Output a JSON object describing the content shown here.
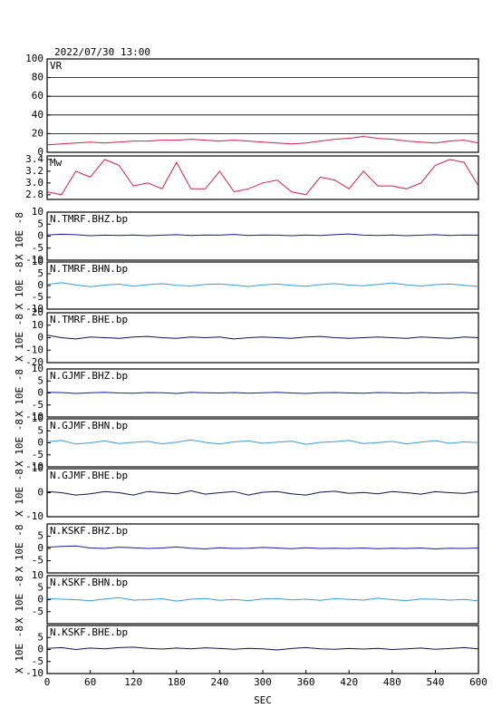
{
  "chart_data": [
    {
      "type": "line",
      "title": "2022/07/30 13:00",
      "grid": true,
      "xlim": [
        0,
        600
      ],
      "ylim": [
        0,
        100
      ],
      "yticks": [
        0,
        20,
        40,
        60,
        80,
        100
      ],
      "x": [
        0,
        20,
        40,
        60,
        80,
        100,
        120,
        140,
        160,
        180,
        200,
        220,
        240,
        260,
        280,
        300,
        320,
        340,
        360,
        380,
        400,
        420,
        440,
        460,
        480,
        500,
        520,
        540,
        560,
        580,
        600
      ],
      "series": [
        {
          "name": "VR",
          "color": "#d0204a",
          "values": [
            8,
            9,
            10,
            11,
            10,
            11,
            12,
            12,
            13,
            13,
            14,
            13,
            12,
            13,
            12,
            11,
            10,
            9,
            10,
            12,
            14,
            15,
            17,
            15,
            14,
            12,
            11,
            10,
            12,
            13,
            10
          ]
        }
      ]
    },
    {
      "type": "line",
      "xlim": [
        0,
        600
      ],
      "ylim": [
        2.72,
        3.46
      ],
      "yticks": [
        2.8,
        {
          "value": 3,
          "label": "3.0"
        },
        3.2,
        3.4
      ],
      "x": [
        0,
        20,
        40,
        60,
        80,
        100,
        120,
        140,
        160,
        180,
        200,
        220,
        240,
        260,
        280,
        300,
        320,
        340,
        360,
        380,
        400,
        420,
        440,
        460,
        480,
        500,
        520,
        540,
        560,
        580,
        600
      ],
      "series": [
        {
          "name": "Mw",
          "color": "#d0204a",
          "values": [
            2.85,
            2.8,
            3.2,
            3.1,
            3.4,
            3.3,
            2.95,
            3.0,
            2.9,
            3.35,
            2.9,
            2.9,
            3.2,
            2.85,
            2.9,
            3.0,
            3.05,
            2.85,
            2.8,
            3.1,
            3.05,
            2.9,
            3.2,
            2.95,
            2.95,
            2.9,
            3.0,
            3.3,
            3.4,
            3.35,
            2.95
          ]
        }
      ]
    },
    {
      "type": "line",
      "ylabel": "X 10E -8",
      "xlim": [
        0,
        600
      ],
      "ylim": [
        -10,
        10
      ],
      "yticks": [
        -10,
        -5,
        0,
        5,
        10
      ],
      "x": [
        0,
        20,
        40,
        60,
        80,
        100,
        120,
        140,
        160,
        180,
        200,
        220,
        240,
        260,
        280,
        300,
        320,
        340,
        360,
        380,
        400,
        420,
        440,
        460,
        480,
        500,
        520,
        540,
        560,
        580,
        600
      ],
      "series": [
        {
          "name": "N.TMRF.BHZ.bp",
          "color": "#1a1aa0",
          "values": [
            0.5,
            0.8,
            0.6,
            0.2,
            0.4,
            0.3,
            0.5,
            0.2,
            0.4,
            0.6,
            0.3,
            0.5,
            0.4,
            0.7,
            0.3,
            0.5,
            0.4,
            0.2,
            0.5,
            0.3,
            0.6,
            0.9,
            0.4,
            0.3,
            0.5,
            0.2,
            0.4,
            0.6,
            0.3,
            0.5,
            0.4
          ]
        }
      ]
    },
    {
      "type": "line",
      "ylabel": "X 10E -8",
      "xlim": [
        0,
        600
      ],
      "ylim": [
        -10,
        10
      ],
      "yticks": [
        -10,
        -5,
        0,
        5,
        10
      ],
      "x": [
        0,
        20,
        40,
        60,
        80,
        100,
        120,
        140,
        160,
        180,
        200,
        220,
        240,
        260,
        280,
        300,
        320,
        340,
        360,
        380,
        400,
        420,
        440,
        460,
        480,
        500,
        520,
        540,
        560,
        580,
        600
      ],
      "series": [
        {
          "name": "N.TMRF.BHN.bp",
          "color": "#3a9ad8",
          "values": [
            0.5,
            1.2,
            0.3,
            -0.5,
            0.2,
            0.6,
            -0.3,
            0.4,
            0.8,
            0.1,
            -0.2,
            0.5,
            0.7,
            0.2,
            -0.4,
            0.3,
            0.6,
            0.1,
            -0.3,
            0.4,
            0.8,
            0.2,
            -0.1,
            0.5,
            1.1,
            0.3,
            -0.2,
            0.4,
            0.7,
            0.1,
            -0.4
          ]
        }
      ]
    },
    {
      "type": "line",
      "ylabel": "X 10E -8",
      "xlim": [
        0,
        600
      ],
      "ylim": [
        -20,
        20
      ],
      "yticks": [
        -20,
        -10,
        0,
        10,
        20
      ],
      "x": [
        0,
        20,
        40,
        60,
        80,
        100,
        120,
        140,
        160,
        180,
        200,
        220,
        240,
        260,
        280,
        300,
        320,
        340,
        360,
        380,
        400,
        420,
        440,
        460,
        480,
        500,
        520,
        540,
        560,
        580,
        600
      ],
      "series": [
        {
          "name": "N.TMRF.BHE.bp",
          "color": "#101050",
          "values": [
            2,
            0,
            -1,
            0.5,
            0,
            -0.5,
            0.5,
            1,
            0,
            -0.5,
            0.5,
            0,
            0.5,
            -1,
            0,
            0.5,
            0,
            -0.5,
            0.5,
            1,
            0,
            -0.5,
            0,
            0.5,
            0,
            -0.5,
            0.5,
            0,
            -0.5,
            0.5,
            0
          ]
        }
      ]
    },
    {
      "type": "line",
      "ylabel": "X 10E -8",
      "xlim": [
        0,
        600
      ],
      "ylim": [
        -10,
        10
      ],
      "yticks": [
        -10,
        -5,
        0,
        5,
        10
      ],
      "x": [
        0,
        20,
        40,
        60,
        80,
        100,
        120,
        140,
        160,
        180,
        200,
        220,
        240,
        260,
        280,
        300,
        320,
        340,
        360,
        380,
        400,
        420,
        440,
        460,
        480,
        500,
        520,
        540,
        560,
        580,
        600
      ],
      "series": [
        {
          "name": "N.GJMF.BHZ.bp",
          "color": "#1a1aa0",
          "values": [
            0.3,
            0.2,
            -0.2,
            0.1,
            0.3,
            0,
            -0.1,
            0.2,
            0.1,
            -0.2,
            0.3,
            0.1,
            0,
            0.2,
            -0.1,
            0.1,
            0.3,
            0,
            -0.2,
            0.1,
            0.2,
            0,
            -0.1,
            0.2,
            0.1,
            -0.1,
            0.2,
            0,
            0.1,
            0.2,
            -0.1
          ]
        }
      ]
    },
    {
      "type": "line",
      "ylabel": "X 10E -8",
      "xlim": [
        0,
        600
      ],
      "ylim": [
        -10,
        10
      ],
      "yticks": [
        -10,
        -5,
        0,
        5,
        10
      ],
      "x": [
        0,
        20,
        40,
        60,
        80,
        100,
        120,
        140,
        160,
        180,
        200,
        220,
        240,
        260,
        280,
        300,
        320,
        340,
        360,
        380,
        400,
        420,
        440,
        460,
        480,
        500,
        520,
        540,
        560,
        580,
        600
      ],
      "series": [
        {
          "name": "N.GJMF.BHN.bp",
          "color": "#3a9ad8",
          "values": [
            0.5,
            1,
            -0.5,
            0,
            0.8,
            -0.3,
            0.2,
            0.6,
            -0.4,
            0.3,
            1.2,
            0.2,
            -0.5,
            0.4,
            0.8,
            -0.2,
            0.3,
            0.7,
            -0.6,
            0.2,
            0.5,
            1,
            -0.3,
            0.1,
            0.6,
            -0.4,
            0.3,
            0.9,
            -0.2,
            0.4,
            0.1
          ]
        }
      ]
    },
    {
      "type": "line",
      "ylabel": "X 10E -8",
      "xlim": [
        0,
        600
      ],
      "ylim": [
        -10,
        10
      ],
      "yticks": [
        -10,
        0,
        10
      ],
      "x": [
        0,
        20,
        40,
        60,
        80,
        100,
        120,
        140,
        160,
        180,
        200,
        220,
        240,
        260,
        280,
        300,
        320,
        340,
        360,
        380,
        400,
        420,
        440,
        460,
        480,
        500,
        520,
        540,
        560,
        580,
        600
      ],
      "series": [
        {
          "name": "N.GJMF.BHE.bp",
          "color": "#101050",
          "values": [
            0.5,
            0,
            -1,
            -0.5,
            0.5,
            0,
            -1,
            0.5,
            0,
            -0.5,
            0.8,
            -0.6,
            0,
            0.5,
            -1,
            0.2,
            0.5,
            -0.5,
            -1,
            0.2,
            0.6,
            -0.3,
            0.1,
            -0.5,
            0.5,
            0,
            -0.6,
            0.4,
            0,
            -0.3,
            0.5
          ]
        }
      ]
    },
    {
      "type": "line",
      "ylabel": "X 10E -8",
      "xlim": [
        0,
        600
      ],
      "ylim": [
        -10,
        10
      ],
      "yticks": [
        -5,
        0,
        5
      ],
      "x": [
        0,
        20,
        40,
        60,
        80,
        100,
        120,
        140,
        160,
        180,
        200,
        220,
        240,
        260,
        280,
        300,
        320,
        340,
        360,
        380,
        400,
        420,
        440,
        460,
        480,
        500,
        520,
        540,
        560,
        580,
        600
      ],
      "series": [
        {
          "name": "N.KSKF.BHZ.bp",
          "color": "#1a1aa0",
          "values": [
            0.5,
            0.8,
            1,
            0.2,
            0,
            0.5,
            0.3,
            0,
            0.2,
            0.6,
            0.1,
            -0.2,
            0.3,
            0,
            0.1,
            0.4,
            0.2,
            -0.1,
            0.3,
            0,
            0.1,
            0,
            0.2,
            -0.1,
            0.1,
            0,
            0.2,
            -0.2,
            0.1,
            0,
            0.2
          ]
        }
      ]
    },
    {
      "type": "line",
      "ylabel": "X 10E -8",
      "xlim": [
        0,
        600
      ],
      "ylim": [
        -10,
        10
      ],
      "yticks": [
        -5,
        0,
        5,
        10
      ],
      "x": [
        0,
        20,
        40,
        60,
        80,
        100,
        120,
        140,
        160,
        180,
        200,
        220,
        240,
        260,
        280,
        300,
        320,
        340,
        360,
        380,
        400,
        420,
        440,
        460,
        480,
        500,
        520,
        540,
        560,
        580,
        600
      ],
      "series": [
        {
          "name": "N.KSKF.BHN.bp",
          "color": "#3a9ad8",
          "values": [
            0.5,
            0.2,
            0,
            -0.5,
            0.3,
            0.8,
            -0.2,
            0,
            0.4,
            -0.6,
            0.2,
            0.5,
            -0.3,
            0.1,
            -0.4,
            0.3,
            0.5,
            -0.1,
            0.2,
            -0.3,
            0.4,
            0.1,
            -0.2,
            0.6,
            0,
            -0.4,
            0.3,
            0.2,
            -0.2,
            0.1,
            -0.5
          ]
        }
      ]
    },
    {
      "type": "line",
      "ylabel": "X 10E -8",
      "xlabel": "SEC",
      "xlim": [
        0,
        600
      ],
      "xticks": [
        0,
        60,
        120,
        180,
        240,
        300,
        360,
        420,
        480,
        540,
        600
      ],
      "ylim": [
        -10,
        10
      ],
      "yticks": [
        -10,
        -5,
        0,
        5
      ],
      "x": [
        0,
        20,
        40,
        60,
        80,
        100,
        120,
        140,
        160,
        180,
        200,
        220,
        240,
        260,
        280,
        300,
        320,
        340,
        360,
        380,
        400,
        420,
        440,
        460,
        480,
        500,
        520,
        540,
        560,
        580,
        600
      ],
      "series": [
        {
          "name": "N.KSKF.BHE.bp",
          "color": "#101050",
          "values": [
            0.5,
            0.8,
            0,
            0.6,
            0.3,
            0.8,
            1,
            0.5,
            0.2,
            0.6,
            0.3,
            0.7,
            0.4,
            0.1,
            0.5,
            0.3,
            -0.2,
            0.4,
            0.8,
            0.3,
            0.1,
            0.4,
            0.2,
            0.5,
            0,
            0.3,
            0.6,
            0.1,
            0.4,
            0.8,
            0.3
          ]
        }
      ]
    }
  ]
}
